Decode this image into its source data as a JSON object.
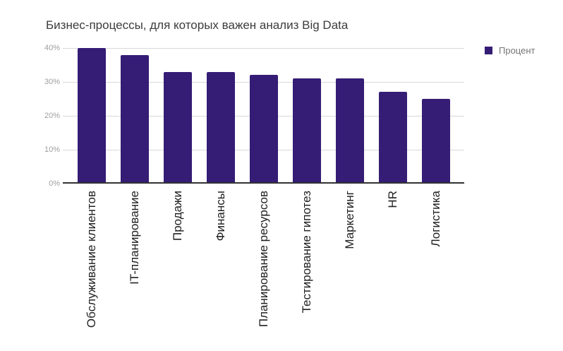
{
  "chart_data": {
    "type": "bar",
    "title": "Бизнес-процессы, для которых важен анализ Big Data",
    "categories": [
      "Обслуживание клиентов",
      "IT-планирование",
      "Продажи",
      "Финансы",
      "Планирование ресурсов",
      "Тестирование гипотез",
      "Маркетинг",
      "HR",
      "Логистика"
    ],
    "series": [
      {
        "name": "Процент",
        "values": [
          40,
          38,
          33,
          33,
          32,
          31,
          31,
          27,
          25
        ]
      }
    ],
    "xlabel": "",
    "ylabel": "",
    "ylim": [
      0,
      40
    ],
    "yticks": [
      0,
      10,
      20,
      30,
      40
    ],
    "ytick_labels": [
      "0%",
      "10%",
      "20%",
      "30%",
      "40%"
    ],
    "grid": true,
    "legend_position": "top-right",
    "bar_color": "#351c75",
    "value_suffix": "%"
  },
  "colors": {
    "bar": "#351c75",
    "gridline": "#d9d9d9",
    "baseline": "#333333",
    "title_text": "#3c3c3c",
    "x_label_text": "#212121",
    "y_tick_text": "#9e9e9e",
    "legend_text": "#757575",
    "background": "#ffffff"
  }
}
